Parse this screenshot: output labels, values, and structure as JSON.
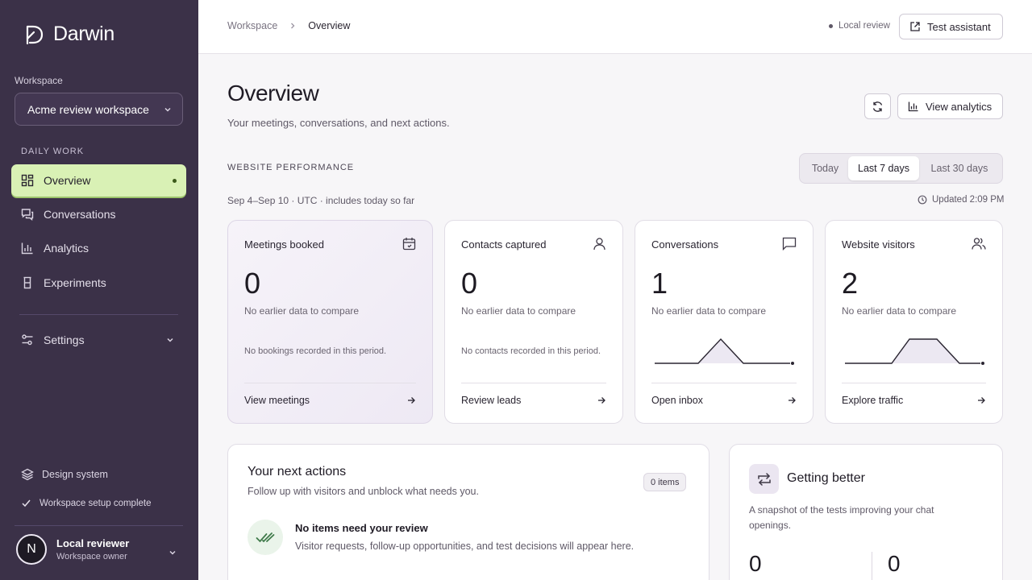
{
  "brand": {
    "name": "Darwin"
  },
  "sidebar": {
    "workspace_label": "Workspace",
    "workspace_value": "Acme review workspace",
    "section_label": "DAILY WORK",
    "items": [
      {
        "label": "Overview",
        "icon": "grid-icon",
        "active": true
      },
      {
        "label": "Conversations",
        "icon": "chat-icon"
      },
      {
        "label": "Analytics",
        "icon": "bar-chart-icon"
      },
      {
        "label": "Experiments",
        "icon": "flask-icon"
      }
    ],
    "settings_label": "Settings",
    "design_system_label": "Design system",
    "setup_complete_label": "Workspace setup complete",
    "user": {
      "initial": "N",
      "name": "Local reviewer",
      "role": "Workspace owner"
    }
  },
  "topbar": {
    "breadcrumb": [
      "Workspace",
      "Overview"
    ],
    "local_review": "Local review",
    "test_assistant": "Test assistant"
  },
  "page": {
    "title": "Overview",
    "subtitle": "Your meetings, conversations, and next actions.",
    "view_analytics": "View analytics",
    "section_label": "WEBSITE PERFORMANCE",
    "ranges": [
      "Today",
      "Last 7 days",
      "Last 30 days"
    ],
    "selected_range": "Last 7 days",
    "range_text": "Sep 4–Sep 10 · UTC · includes today so far",
    "updated": "Updated 2:09 PM"
  },
  "cards": [
    {
      "title": "Meetings booked",
      "value": "0",
      "compare": "No earlier data to compare",
      "empty": "No bookings recorded in this period.",
      "link": "View meetings",
      "icon": "calendar-icon"
    },
    {
      "title": "Contacts captured",
      "value": "0",
      "compare": "No earlier data to compare",
      "empty": "No contacts recorded in this period.",
      "link": "Review leads",
      "icon": "user-icon"
    },
    {
      "title": "Conversations",
      "value": "1",
      "compare": "No earlier data to compare",
      "link": "Open inbox",
      "icon": "message-icon"
    },
    {
      "title": "Website visitors",
      "value": "2",
      "compare": "No earlier data to compare",
      "link": "Explore traffic",
      "icon": "users-icon"
    }
  ],
  "next_actions": {
    "title": "Your next actions",
    "subtitle": "Follow up with visitors and unblock what needs you.",
    "badge": "0 items",
    "empty_title": "No items need your review",
    "empty_sub": "Visitor requests, follow-up opportunities, and test decisions will appear here."
  },
  "getting_better": {
    "title": "Getting better",
    "subtitle": "A snapshot of the tests improving your chat openings.",
    "value_a": "0",
    "value_b": "0"
  }
}
